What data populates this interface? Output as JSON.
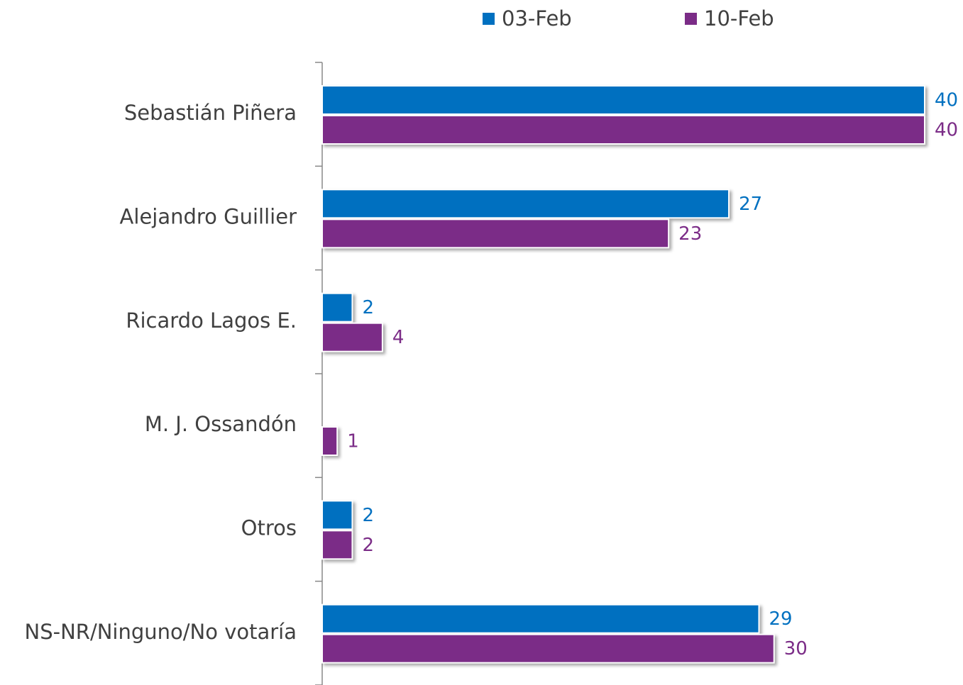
{
  "chart_data": {
    "type": "hbar",
    "categories": [
      "Sebastián Piñera",
      "Alejandro Guillier",
      "Ricardo Lagos E.",
      "M. J. Ossandón",
      "Otros",
      "NS-NR/Ninguno/No votaría"
    ],
    "series": [
      {
        "name": "03-Feb",
        "color": "#0070c0",
        "values": [
          40,
          27,
          2,
          null,
          2,
          29
        ]
      },
      {
        "name": "10-Feb",
        "color": "#7b2c87",
        "values": [
          40,
          23,
          4,
          1,
          2,
          30
        ]
      }
    ],
    "xlim": [
      0,
      40
    ],
    "legend": "top",
    "grid": false
  }
}
